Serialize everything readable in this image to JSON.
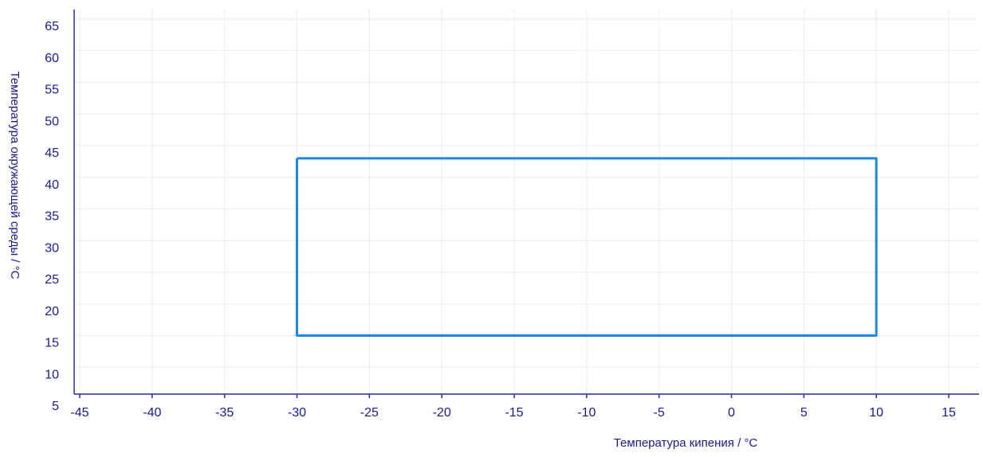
{
  "chart_data": {
    "type": "line",
    "title": "",
    "xlabel": "Температура кипения / °C",
    "ylabel": "Температура окружающей среды / °C",
    "xlim": [
      -45,
      15
    ],
    "ylim": [
      5,
      65
    ],
    "x_ticks": [
      -45,
      -40,
      -35,
      -30,
      -25,
      -20,
      -15,
      -10,
      -5,
      0,
      5,
      10,
      15
    ],
    "y_ticks": [
      5,
      10,
      15,
      20,
      25,
      30,
      35,
      40,
      45,
      50,
      55,
      60,
      65
    ],
    "grid": true,
    "legend": "none",
    "series": [
      {
        "color": "#1e88e5",
        "x": [
          -30,
          10,
          10,
          -30,
          -30
        ],
        "y": [
          43,
          43,
          15,
          15,
          43
        ]
      }
    ]
  },
  "colors": {
    "axis": "#2a2a9a",
    "text": "#1a1a8c",
    "grid": "#ececec",
    "series": "#1e88e5"
  }
}
